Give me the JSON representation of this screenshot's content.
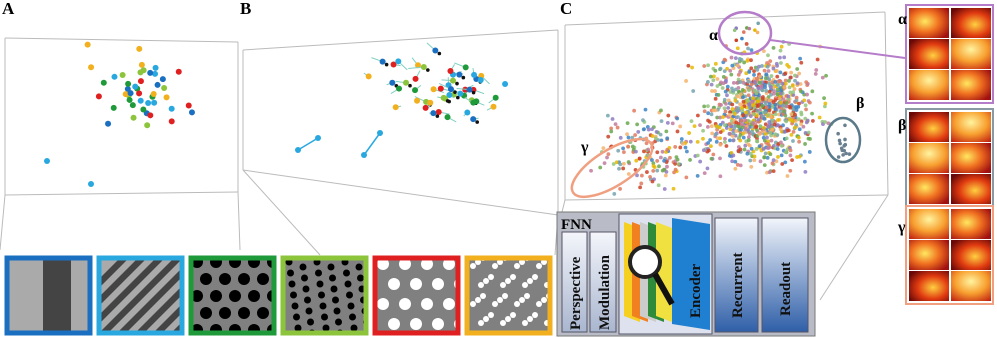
{
  "panels": [
    {
      "label": "A"
    },
    {
      "label": "B"
    },
    {
      "label": "C"
    }
  ],
  "clusters": {
    "plot": [
      "α",
      "β",
      "γ"
    ],
    "maps": [
      "α",
      "β",
      "γ"
    ]
  },
  "model": {
    "title": "FNN",
    "modules": [
      "Perspective",
      "Modulation",
      "Encoder",
      "Recurrent",
      "Readout"
    ]
  }
}
